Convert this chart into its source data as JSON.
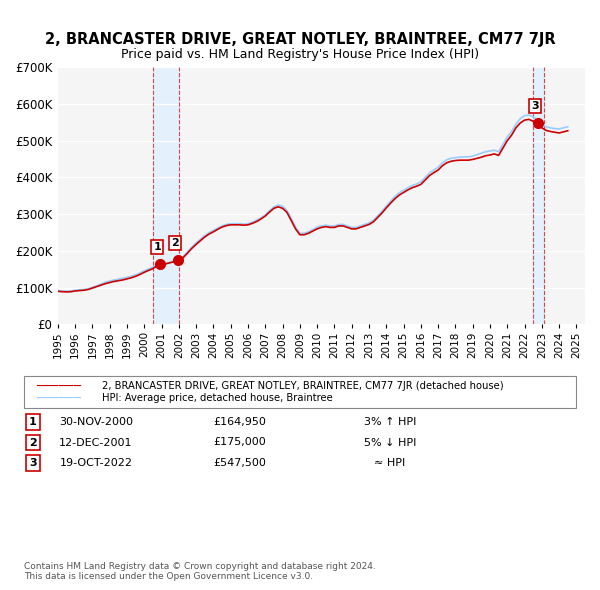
{
  "title": "2, BRANCASTER DRIVE, GREAT NOTLEY, BRAINTREE, CM77 7JR",
  "subtitle": "Price paid vs. HM Land Registry's House Price Index (HPI)",
  "ylabel": "",
  "ylim": [
    0,
    700000
  ],
  "yticks": [
    0,
    100000,
    200000,
    300000,
    400000,
    500000,
    600000,
    700000
  ],
  "ytick_labels": [
    "£0",
    "£100K",
    "£200K",
    "£300K",
    "£400K",
    "£500K",
    "£600K",
    "£700K"
  ],
  "xlim_start": 1995.0,
  "xlim_end": 2025.5,
  "sale_color": "#cc0000",
  "hpi_color": "#99ccff",
  "bg_color": "#ffffff",
  "plot_bg_color": "#f5f5f5",
  "grid_color": "#ffffff",
  "legend_line1": "2, BRANCASTER DRIVE, GREAT NOTLEY, BRAINTREE, CM77 7JR (detached house)",
  "legend_line2": "HPI: Average price, detached house, Braintree",
  "transactions": [
    {
      "num": 1,
      "date": "30-NOV-2000",
      "price": 164950,
      "year": 2000.92,
      "relation": "3% ↑ HPI"
    },
    {
      "num": 2,
      "date": "12-DEC-2001",
      "price": 175000,
      "year": 2001.95,
      "relation": "5% ↓ HPI"
    },
    {
      "num": 3,
      "date": "19-OCT-2022",
      "price": 547500,
      "year": 2022.8,
      "relation": "≈ HPI"
    }
  ],
  "shade_regions": [
    {
      "x_start": 2000.5,
      "x_end": 2002.0
    },
    {
      "x_start": 2022.5,
      "x_end": 2023.1
    }
  ],
  "footnote1": "Contains HM Land Registry data © Crown copyright and database right 2024.",
  "footnote2": "This data is licensed under the Open Government Licence v3.0.",
  "hpi_data_x": [
    1995.0,
    1995.25,
    1995.5,
    1995.75,
    1996.0,
    1996.25,
    1996.5,
    1996.75,
    1997.0,
    1997.25,
    1997.5,
    1997.75,
    1998.0,
    1998.25,
    1998.5,
    1998.75,
    1999.0,
    1999.25,
    1999.5,
    1999.75,
    2000.0,
    2000.25,
    2000.5,
    2000.75,
    2001.0,
    2001.25,
    2001.5,
    2001.75,
    2002.0,
    2002.25,
    2002.5,
    2002.75,
    2003.0,
    2003.25,
    2003.5,
    2003.75,
    2004.0,
    2004.25,
    2004.5,
    2004.75,
    2005.0,
    2005.25,
    2005.5,
    2005.75,
    2006.0,
    2006.25,
    2006.5,
    2006.75,
    2007.0,
    2007.25,
    2007.5,
    2007.75,
    2008.0,
    2008.25,
    2008.5,
    2008.75,
    2009.0,
    2009.25,
    2009.5,
    2009.75,
    2010.0,
    2010.25,
    2010.5,
    2010.75,
    2011.0,
    2011.25,
    2011.5,
    2011.75,
    2012.0,
    2012.25,
    2012.5,
    2012.75,
    2013.0,
    2013.25,
    2013.5,
    2013.75,
    2014.0,
    2014.25,
    2014.5,
    2014.75,
    2015.0,
    2015.25,
    2015.5,
    2015.75,
    2016.0,
    2016.25,
    2016.5,
    2016.75,
    2017.0,
    2017.25,
    2017.5,
    2017.75,
    2018.0,
    2018.25,
    2018.5,
    2018.75,
    2019.0,
    2019.25,
    2019.5,
    2019.75,
    2020.0,
    2020.25,
    2020.5,
    2020.75,
    2021.0,
    2021.25,
    2021.5,
    2021.75,
    2022.0,
    2022.25,
    2022.5,
    2022.75,
    2023.0,
    2023.25,
    2023.5,
    2023.75,
    2024.0,
    2024.25,
    2024.5
  ],
  "hpi_data_y": [
    92000,
    91000,
    90500,
    91000,
    93000,
    94000,
    95000,
    97000,
    101000,
    105000,
    110000,
    115000,
    118000,
    121000,
    123000,
    126000,
    128000,
    131000,
    135000,
    140000,
    146000,
    151000,
    156000,
    160000,
    163000,
    166000,
    169000,
    172000,
    176000,
    185000,
    198000,
    210000,
    222000,
    232000,
    242000,
    250000,
    256000,
    262000,
    268000,
    272000,
    274000,
    274000,
    274000,
    273000,
    274000,
    278000,
    284000,
    290000,
    298000,
    310000,
    320000,
    325000,
    322000,
    310000,
    288000,
    265000,
    248000,
    248000,
    252000,
    258000,
    265000,
    268000,
    270000,
    268000,
    268000,
    272000,
    272000,
    268000,
    264000,
    264000,
    268000,
    272000,
    276000,
    283000,
    295000,
    308000,
    322000,
    335000,
    348000,
    358000,
    365000,
    372000,
    378000,
    382000,
    388000,
    400000,
    412000,
    420000,
    428000,
    440000,
    448000,
    452000,
    454000,
    455000,
    456000,
    456000,
    458000,
    462000,
    466000,
    470000,
    472000,
    474000,
    470000,
    490000,
    510000,
    525000,
    545000,
    560000,
    568000,
    570000,
    565000,
    555000,
    545000,
    538000,
    535000,
    533000,
    532000,
    535000,
    538000
  ],
  "sale_data_x": [
    1995.0,
    1995.25,
    1995.5,
    1995.75,
    1996.0,
    1996.25,
    1996.5,
    1996.75,
    1997.0,
    1997.25,
    1997.5,
    1997.75,
    1998.0,
    1998.25,
    1998.5,
    1998.75,
    1999.0,
    1999.25,
    1999.5,
    1999.75,
    2000.0,
    2000.25,
    2000.5,
    2000.75,
    2001.0,
    2001.25,
    2001.5,
    2001.75,
    2002.0,
    2002.25,
    2002.5,
    2002.75,
    2003.0,
    2003.25,
    2003.5,
    2003.75,
    2004.0,
    2004.25,
    2004.5,
    2004.75,
    2005.0,
    2005.25,
    2005.5,
    2005.75,
    2006.0,
    2006.25,
    2006.5,
    2006.75,
    2007.0,
    2007.25,
    2007.5,
    2007.75,
    2008.0,
    2008.25,
    2008.5,
    2008.75,
    2009.0,
    2009.25,
    2009.5,
    2009.75,
    2010.0,
    2010.25,
    2010.5,
    2010.75,
    2011.0,
    2011.25,
    2011.5,
    2011.75,
    2012.0,
    2012.25,
    2012.5,
    2012.75,
    2013.0,
    2013.25,
    2013.5,
    2013.75,
    2014.0,
    2014.25,
    2014.5,
    2014.75,
    2015.0,
    2015.25,
    2015.5,
    2015.75,
    2016.0,
    2016.25,
    2016.5,
    2016.75,
    2017.0,
    2017.25,
    2017.5,
    2017.75,
    2018.0,
    2018.25,
    2018.5,
    2018.75,
    2019.0,
    2019.25,
    2019.5,
    2019.75,
    2020.0,
    2020.25,
    2020.5,
    2020.75,
    2021.0,
    2021.25,
    2021.5,
    2021.75,
    2022.0,
    2022.25,
    2022.5,
    2022.75,
    2023.0,
    2023.25,
    2023.5,
    2023.75,
    2024.0,
    2024.25,
    2024.5
  ],
  "sale_data_y": [
    90000,
    89000,
    88500,
    89000,
    91000,
    92000,
    93000,
    95000,
    99000,
    103000,
    107000,
    111000,
    114000,
    117000,
    119000,
    121000,
    124000,
    127000,
    131000,
    136000,
    142000,
    147000,
    152000,
    160000,
    163000,
    165000,
    168000,
    171000,
    175000,
    182000,
    194000,
    207000,
    218000,
    228000,
    238000,
    246000,
    252000,
    259000,
    265000,
    269000,
    271000,
    271000,
    271000,
    270000,
    271000,
    275000,
    280000,
    287000,
    295000,
    306000,
    316000,
    320000,
    316000,
    305000,
    283000,
    260000,
    244000,
    244000,
    248000,
    254000,
    260000,
    264000,
    266000,
    264000,
    264000,
    268000,
    268000,
    264000,
    260000,
    260000,
    264000,
    268000,
    272000,
    279000,
    291000,
    303000,
    317000,
    330000,
    342000,
    352000,
    359000,
    366000,
    372000,
    376000,
    381000,
    393000,
    405000,
    413000,
    420000,
    432000,
    440000,
    444000,
    446000,
    447000,
    447000,
    447000,
    449000,
    452000,
    455000,
    459000,
    461000,
    464000,
    460000,
    480000,
    500000,
    515000,
    535000,
    548000,
    556000,
    558000,
    553000,
    543000,
    535000,
    528000,
    525000,
    523000,
    521000,
    524000,
    527000
  ]
}
